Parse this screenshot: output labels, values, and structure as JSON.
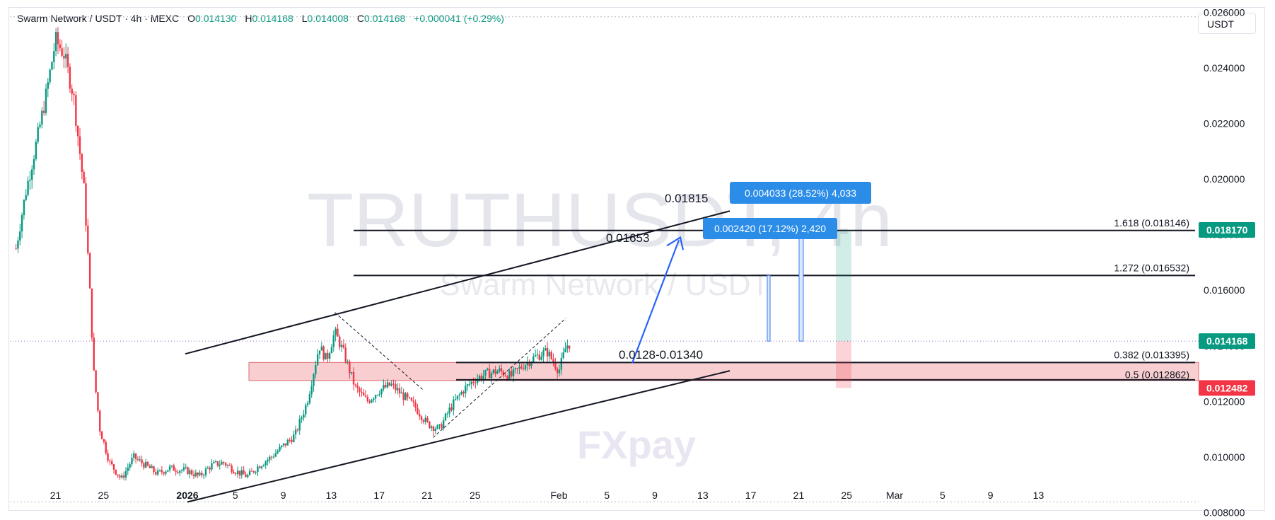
{
  "header": {
    "symbol": "Swarm Network / USDT · 4h · MEXC",
    "open_label": "O",
    "open": "0.014130",
    "high_label": "H",
    "high": "0.014168",
    "low_label": "L",
    "low": "0.014008",
    "close_label": "C",
    "close": "0.014168",
    "change": "+0.000041 (+0.29%)"
  },
  "currency_button": "USDT",
  "watermark": {
    "line1": "TRUTHUSDT, 4h",
    "line2": "Swarm Network / USDT",
    "logo": "FXpay"
  },
  "colors": {
    "up": "#089981",
    "down": "#f23645",
    "accent": "#2962ff",
    "zone": "#f7c5c8"
  },
  "chart_data": {
    "type": "candlestick",
    "title": "",
    "ylim": [
      0.0072,
      0.0268
    ],
    "y_ticks": [
      "0.008000",
      "0.010000",
      "0.012000",
      "0.014000",
      "0.016000",
      "0.018000",
      "0.020000",
      "0.022000",
      "0.024000",
      "0.026000"
    ],
    "y_tick_values": [
      0.008,
      0.01,
      0.012,
      0.014,
      0.016,
      0.018,
      0.02,
      0.022,
      0.024,
      0.026
    ],
    "x_ticks": [
      {
        "label": "21",
        "day": -11
      },
      {
        "label": "25",
        "day": -7
      },
      {
        "label": "2026",
        "day": 0,
        "bold": true
      },
      {
        "label": "5",
        "day": 4
      },
      {
        "label": "9",
        "day": 8
      },
      {
        "label": "13",
        "day": 12
      },
      {
        "label": "17",
        "day": 16
      },
      {
        "label": "21",
        "day": 20
      },
      {
        "label": "25",
        "day": 24
      },
      {
        "label": "Feb",
        "day": 31
      },
      {
        "label": "5",
        "day": 35
      },
      {
        "label": "9",
        "day": 39
      },
      {
        "label": "13",
        "day": 43
      },
      {
        "label": "17",
        "day": 47
      },
      {
        "label": "21",
        "day": 51
      },
      {
        "label": "25",
        "day": 55
      },
      {
        "label": "Mar",
        "day": 59
      },
      {
        "label": "5",
        "day": 63
      },
      {
        "label": "9",
        "day": 67
      },
      {
        "label": "13",
        "day": 71
      }
    ],
    "price_path": [
      [
        -14.3,
        0.0175
      ],
      [
        -13.5,
        0.0195
      ],
      [
        -12.5,
        0.0215
      ],
      [
        -11.8,
        0.023
      ],
      [
        -11,
        0.025
      ],
      [
        -10.3,
        0.0245
      ],
      [
        -9.5,
        0.023
      ],
      [
        -8.6,
        0.0195
      ],
      [
        -8.2,
        0.0165
      ],
      [
        -7.8,
        0.013
      ],
      [
        -7.3,
        0.011
      ],
      [
        -6.5,
        0.0098
      ],
      [
        -5.5,
        0.0092
      ],
      [
        -4.5,
        0.01
      ],
      [
        -3.5,
        0.0097
      ],
      [
        -2.5,
        0.0094
      ],
      [
        -1.5,
        0.0096
      ],
      [
        0,
        0.0095
      ],
      [
        1,
        0.0093
      ],
      [
        2,
        0.0097
      ],
      [
        3,
        0.0098
      ],
      [
        4,
        0.0095
      ],
      [
        5,
        0.0093
      ],
      [
        6,
        0.0097
      ],
      [
        7,
        0.01
      ],
      [
        8,
        0.0104
      ],
      [
        9,
        0.0108
      ],
      [
        10,
        0.012
      ],
      [
        11,
        0.014
      ],
      [
        11.6,
        0.0135
      ],
      [
        12.3,
        0.0145
      ],
      [
        13,
        0.0138
      ],
      [
        14,
        0.0125
      ],
      [
        15,
        0.012
      ],
      [
        16,
        0.0124
      ],
      [
        17,
        0.0126
      ],
      [
        18,
        0.0122
      ],
      [
        19,
        0.0118
      ],
      [
        20,
        0.0112
      ],
      [
        21,
        0.011
      ],
      [
        22,
        0.0118
      ],
      [
        23,
        0.0124
      ],
      [
        24,
        0.0128
      ],
      [
        25,
        0.013
      ],
      [
        26,
        0.0131
      ],
      [
        27,
        0.0129
      ],
      [
        28,
        0.0133
      ],
      [
        29,
        0.0136
      ],
      [
        30,
        0.0138
      ],
      [
        31,
        0.0131
      ],
      [
        31.6,
        0.014
      ],
      [
        32,
        0.0141
      ]
    ],
    "levels": {
      "fib_1618": 0.018146,
      "fib_1272": 0.016532,
      "fib_0382": 0.013395,
      "fib_05": 0.012862,
      "target_1": 0.01815,
      "target_2": 0.01653,
      "zone_low": 0.0128,
      "zone_high": 0.0134,
      "current": 0.014168,
      "stop": 0.012482
    },
    "annotations": {
      "target_1": "0.01815",
      "target_2": "0.01653",
      "zone": "0.0128-0.01340",
      "fib_1618": "1.618 (0.018146)",
      "fib_1272": "1.272 (0.016532)",
      "fib_0382": "0.382 (0.013395)",
      "fib_05": "0.5 (0.012862)",
      "callout_1": "0.004033 (28.52%) 4,033",
      "callout_2": "0.002420 (17.12%) 2,420",
      "price_tag_target": "0.018170",
      "price_tag_current": "0.014168",
      "price_tag_stop": "0.012482"
    }
  }
}
